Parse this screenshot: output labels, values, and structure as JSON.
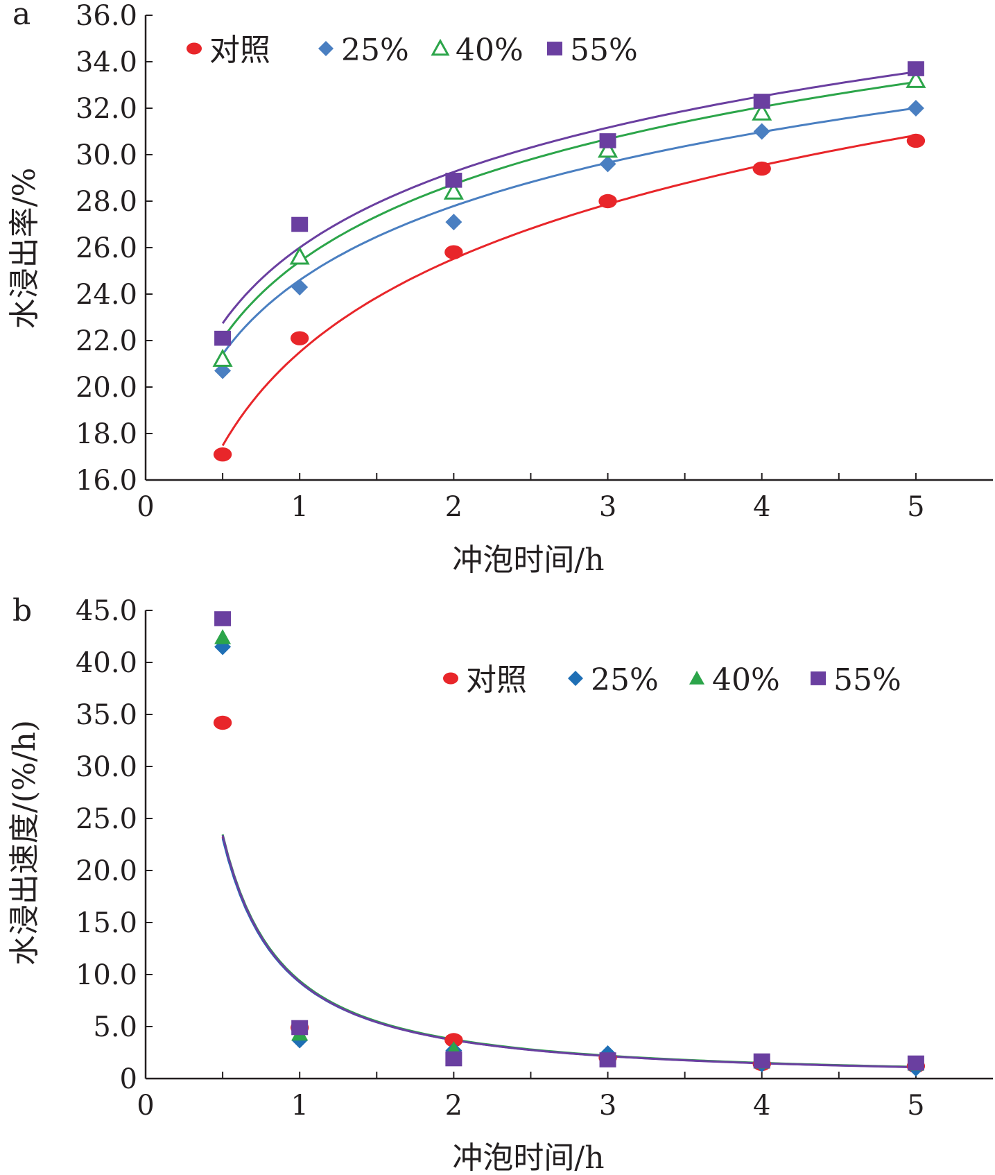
{
  "chart_data": [
    {
      "panel": "a",
      "type": "scatter",
      "xlabel": "冲泡时间/h",
      "ylabel": "水浸出率/%",
      "xlim": [
        0,
        5.5
      ],
      "ylim": [
        16,
        36
      ],
      "xticks": [
        0,
        1,
        2,
        3,
        4,
        5
      ],
      "xtick_labels": [
        "0",
        "1",
        "2",
        "3",
        "4",
        "5"
      ],
      "yticks": [
        16,
        18,
        20,
        22,
        24,
        26,
        28,
        30,
        32,
        34,
        36
      ],
      "ytick_labels": [
        "16.0",
        "18.0",
        "20.0",
        "22.0",
        "24.0",
        "26.0",
        "28.0",
        "30.0",
        "32.0",
        "34.0",
        "36.0"
      ],
      "legend_position": "top-left",
      "x": [
        0.5,
        1,
        2,
        3,
        4,
        5
      ],
      "series": [
        {
          "name": "对照",
          "marker": "circle",
          "color": "#e8262a",
          "values": [
            17.1,
            22.1,
            25.8,
            28.0,
            29.4,
            30.6
          ],
          "fit": {
            "type": "log",
            "a": 21.5,
            "b": 5.8
          }
        },
        {
          "name": "25%",
          "marker": "diamond",
          "color": "#4a7fc1",
          "values": [
            20.7,
            24.3,
            27.1,
            29.6,
            31.0,
            32.0
          ],
          "fit": {
            "type": "log",
            "a": 24.6,
            "b": 4.6
          }
        },
        {
          "name": "40%",
          "marker": "triangle-open",
          "color": "#2ca54a",
          "values": [
            21.2,
            25.6,
            28.4,
            30.2,
            31.8,
            33.2
          ],
          "fit": {
            "type": "log",
            "a": 25.4,
            "b": 4.8
          }
        },
        {
          "name": "55%",
          "marker": "square",
          "color": "#6a3fa0",
          "values": [
            22.1,
            27.0,
            28.9,
            30.6,
            32.3,
            33.7
          ],
          "fit": {
            "type": "log",
            "a": 26.0,
            "b": 4.7
          }
        }
      ]
    },
    {
      "panel": "b",
      "type": "scatter",
      "xlabel": "冲泡时间/h",
      "ylabel": "水浸出速度/(%/h)",
      "xlim": [
        0,
        5.5
      ],
      "ylim": [
        0,
        45
      ],
      "xticks": [
        0,
        1,
        2,
        3,
        4,
        5
      ],
      "xtick_labels": [
        "0",
        "1",
        "2",
        "3",
        "4",
        "5"
      ],
      "yticks": [
        0,
        5,
        10,
        15,
        20,
        25,
        30,
        35,
        40,
        45
      ],
      "ytick_labels": [
        "0",
        "5.0",
        "10.0",
        "15.0",
        "20.0",
        "25.0",
        "30.0",
        "35.0",
        "40.0",
        "45.0"
      ],
      "legend_position": "top-right",
      "x": [
        0.5,
        1,
        2,
        3,
        4,
        5
      ],
      "series": [
        {
          "name": "对照",
          "marker": "circle",
          "color": "#e8262a",
          "values": [
            34.2,
            4.9,
            3.7,
            2.0,
            1.4,
            1.2
          ],
          "fit": {
            "type": "power",
            "a": 9.3,
            "b": -1.32
          }
        },
        {
          "name": "25%",
          "marker": "diamond",
          "color": "#1f6fb5",
          "values": [
            41.5,
            3.7,
            2.7,
            2.4,
            1.4,
            1.0
          ],
          "fit": {
            "type": "power",
            "a": 9.25,
            "b": -1.32
          }
        },
        {
          "name": "40%",
          "marker": "triangle",
          "color": "#2ca54a",
          "values": [
            42.4,
            4.3,
            2.8,
            1.8,
            1.6,
            1.4
          ],
          "fit": {
            "type": "power",
            "a": 9.4,
            "b": -1.32
          }
        },
        {
          "name": "55%",
          "marker": "square",
          "color": "#6a3fa0",
          "values": [
            44.2,
            4.9,
            1.9,
            1.8,
            1.7,
            1.5
          ],
          "fit": {
            "type": "power",
            "a": 9.3,
            "b": -1.33
          }
        }
      ]
    }
  ]
}
